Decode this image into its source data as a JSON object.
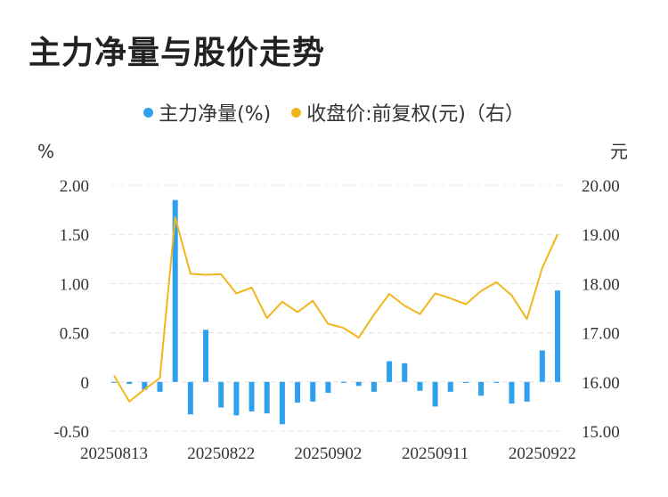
{
  "title": "主力净量与股价走势",
  "legend": {
    "bar_label": "主力净量(%)",
    "line_label": "收盘价:前复权(元)（右）"
  },
  "colors": {
    "bar": "#2f9ff0",
    "line": "#f2b61c",
    "grid": "#e4e4e4"
  },
  "chart_data": {
    "type": "bar+line",
    "title": "主力净量与股价走势",
    "y_left_unit": "%",
    "y_right_unit": "元",
    "y_left_ticks": [
      "2.00",
      "1.50",
      "1.00",
      "0.50",
      "0",
      "-0.50"
    ],
    "y_right_ticks": [
      "20.00",
      "19.00",
      "18.00",
      "17.00",
      "16.00",
      "15.00"
    ],
    "y_left_range": [
      -0.5,
      2.0
    ],
    "y_right_range": [
      15.0,
      20.0
    ],
    "x_tick_labels": [
      "20250813",
      "20250822",
      "20250902",
      "20250911",
      "20250922"
    ],
    "x_tick_indices": [
      0,
      7,
      14,
      21,
      28
    ],
    "grid": true,
    "legend_position": "top",
    "series": [
      {
        "name": "主力净量(%)",
        "type": "bar",
        "axis": "left",
        "values": [
          0.0,
          -0.02,
          -0.08,
          -0.1,
          1.85,
          -0.33,
          0.53,
          -0.26,
          -0.34,
          -0.3,
          -0.32,
          -0.43,
          -0.21,
          -0.2,
          -0.11,
          -0.01,
          -0.04,
          -0.1,
          0.21,
          0.19,
          -0.09,
          -0.25,
          -0.1,
          -0.01,
          -0.14,
          -0.01,
          -0.22,
          -0.2,
          0.32,
          0.93
        ]
      },
      {
        "name": "收盘价:前复权(元)（右）",
        "type": "line",
        "axis": "right",
        "values": [
          16.13,
          15.6,
          15.85,
          16.08,
          19.35,
          18.2,
          18.18,
          18.19,
          17.8,
          17.92,
          17.3,
          17.63,
          17.42,
          17.65,
          17.18,
          17.1,
          16.9,
          17.37,
          17.79,
          17.55,
          17.38,
          17.8,
          17.7,
          17.58,
          17.85,
          18.03,
          17.76,
          17.28,
          18.32,
          19.0
        ]
      }
    ]
  }
}
